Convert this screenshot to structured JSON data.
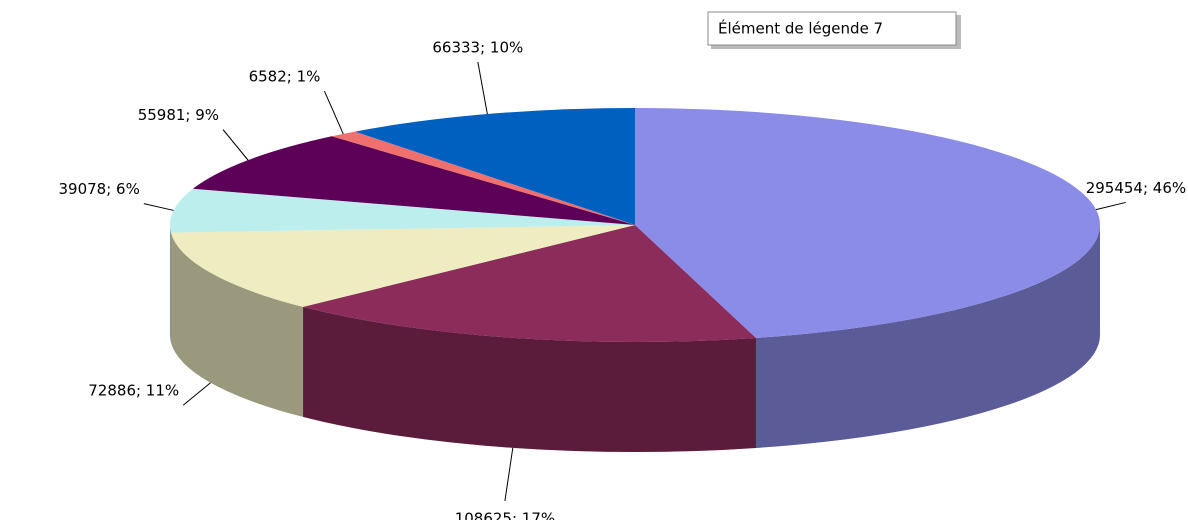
{
  "chart_data": {
    "type": "pie3d",
    "legend": [
      "Élément de légende 7"
    ],
    "values": [
      295454,
      108625,
      72886,
      39078,
      55981,
      6582,
      66333
    ],
    "value_labels": [
      "295454; 46%",
      "108625; 17%",
      "72886; 11%",
      "39078; 6%",
      "55981; 9%",
      "6582; 1%",
      "66333; 10%"
    ],
    "colors": [
      "#8b8ce8",
      "#8b2c5a",
      "#eeecc0",
      "#bdeeee",
      "#5c0058",
      "#f07070",
      "#0060c0"
    ]
  }
}
